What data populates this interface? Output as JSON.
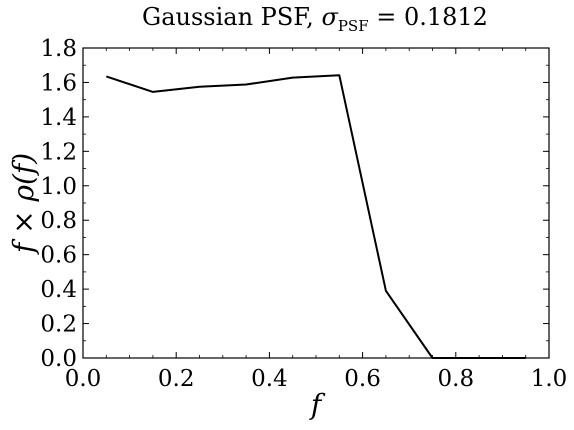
{
  "chart_data": {
    "type": "line",
    "title_prefix": "Gaussian PSF, ",
    "title_sigma": "σ",
    "title_subscript": "PSF",
    "title_suffix": " = 0.1812",
    "xlabel": "f",
    "ylabel": "f × ρ(f)",
    "xlim": [
      0.0,
      1.0
    ],
    "ylim": [
      0.0,
      1.8
    ],
    "xticks": [
      "0.0",
      "0.2",
      "0.4",
      "0.6",
      "0.8",
      "1.0"
    ],
    "yticks": [
      "0.0",
      "0.2",
      "0.4",
      "0.6",
      "0.8",
      "1.0",
      "1.2",
      "1.4",
      "1.6",
      "1.8"
    ],
    "grid": false,
    "legend": "none",
    "line_color": "#000000",
    "series": [
      {
        "x": [
          0.05,
          0.15,
          0.25,
          0.35,
          0.45,
          0.55,
          0.65,
          0.75,
          0.85,
          0.95
        ],
        "y": [
          1.635,
          1.545,
          1.575,
          1.588,
          1.628,
          1.642,
          0.39,
          0.0,
          0.0,
          0.0
        ]
      }
    ]
  }
}
